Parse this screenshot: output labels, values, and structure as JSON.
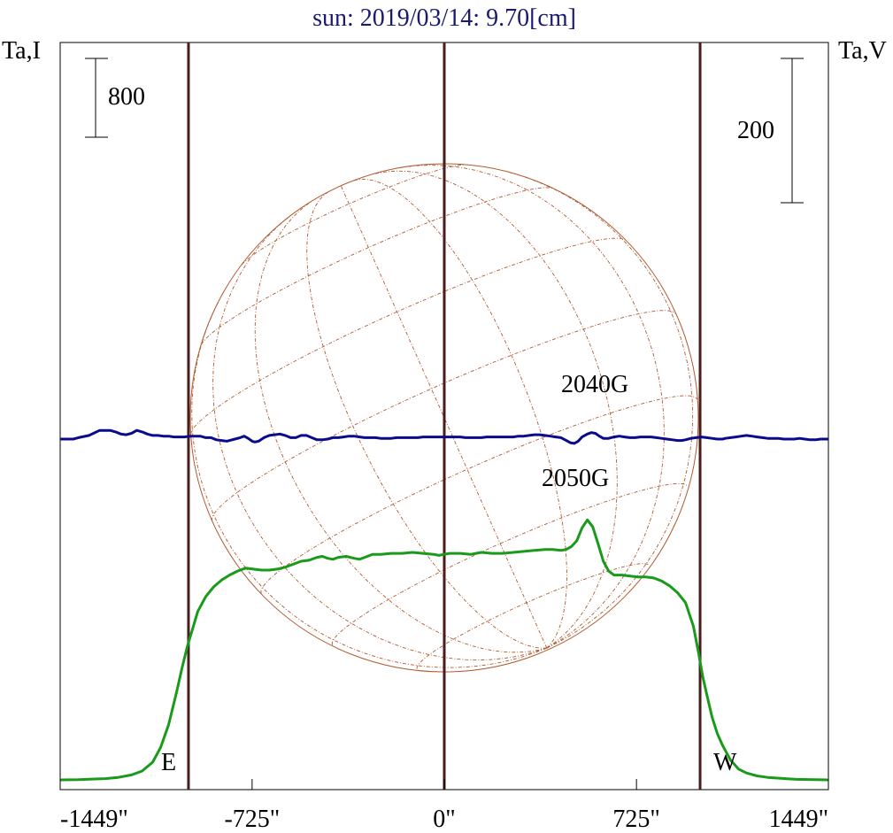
{
  "chart_data": {
    "type": "line",
    "title": "sun: 2019/03/14: 9.70[cm]",
    "left_axis_label": "Ta,I",
    "right_axis_label": "Ta,V",
    "xlim": [
      -1449,
      1449
    ],
    "x_ticks": [
      {
        "value": -1449,
        "label": "-1449\""
      },
      {
        "value": -725,
        "label": "-725\""
      },
      {
        "value": 0,
        "label": "0\""
      },
      {
        "value": 725,
        "label": "725\""
      },
      {
        "value": 1449,
        "label": "1449\""
      }
    ],
    "scale_bars": [
      {
        "side": "left",
        "value": 800,
        "label": "800"
      },
      {
        "side": "right",
        "value": 200,
        "label": "200"
      }
    ],
    "vertical_markers": [
      -965,
      0,
      965
    ],
    "limb_labels": {
      "east": "E",
      "west": "W"
    },
    "annotations": [
      "2040G",
      "2050G"
    ],
    "colors": {
      "title": "#1a1a6e",
      "intensity": "#1a9a1a",
      "polarization": "#0a0a8c",
      "markers": "#4a1c1c",
      "disk": "#b05a30",
      "frame": "#000000"
    },
    "series": [
      {
        "key": "intensity",
        "points": [
          [
            -1449,
            0
          ],
          [
            -1380,
            3
          ],
          [
            -1330,
            8
          ],
          [
            -1280,
            13
          ],
          [
            -1230,
            25
          ],
          [
            -1180,
            50
          ],
          [
            -1140,
            90
          ],
          [
            -1100,
            180
          ],
          [
            -1070,
            330
          ],
          [
            -1040,
            560
          ],
          [
            -1010,
            890
          ],
          [
            -990,
            1130
          ],
          [
            -970,
            1350
          ],
          [
            -950,
            1530
          ],
          [
            -930,
            1710
          ],
          [
            -900,
            1860
          ],
          [
            -870,
            1960
          ],
          [
            -840,
            2030
          ],
          [
            -810,
            2080
          ],
          [
            -780,
            2120
          ],
          [
            -750,
            2150
          ],
          [
            -720,
            2140
          ],
          [
            -690,
            2130
          ],
          [
            -660,
            2130
          ],
          [
            -630,
            2140
          ],
          [
            -600,
            2160
          ],
          [
            -570,
            2190
          ],
          [
            -540,
            2220
          ],
          [
            -510,
            2230
          ],
          [
            -480,
            2260
          ],
          [
            -460,
            2270
          ],
          [
            -440,
            2250
          ],
          [
            -420,
            2240
          ],
          [
            -400,
            2260
          ],
          [
            -370,
            2270
          ],
          [
            -340,
            2250
          ],
          [
            -320,
            2240
          ],
          [
            -300,
            2260
          ],
          [
            -270,
            2290
          ],
          [
            -240,
            2290
          ],
          [
            -200,
            2300
          ],
          [
            -160,
            2300
          ],
          [
            -120,
            2310
          ],
          [
            -80,
            2300
          ],
          [
            -40,
            2290
          ],
          [
            -20,
            2280
          ],
          [
            0,
            2290
          ],
          [
            20,
            2300
          ],
          [
            60,
            2300
          ],
          [
            100,
            2290
          ],
          [
            140,
            2310
          ],
          [
            180,
            2300
          ],
          [
            220,
            2300
          ],
          [
            260,
            2310
          ],
          [
            300,
            2320
          ],
          [
            340,
            2330
          ],
          [
            380,
            2340
          ],
          [
            410,
            2340
          ],
          [
            440,
            2330
          ],
          [
            460,
            2340
          ],
          [
            480,
            2370
          ],
          [
            500,
            2430
          ],
          [
            520,
            2560
          ],
          [
            540,
            2640
          ],
          [
            560,
            2570
          ],
          [
            580,
            2400
          ],
          [
            600,
            2220
          ],
          [
            620,
            2120
          ],
          [
            640,
            2080
          ],
          [
            670,
            2080
          ],
          [
            700,
            2070
          ],
          [
            730,
            2060
          ],
          [
            760,
            2060
          ],
          [
            790,
            2050
          ],
          [
            820,
            2020
          ],
          [
            850,
            1970
          ],
          [
            880,
            1900
          ],
          [
            910,
            1800
          ],
          [
            940,
            1560
          ],
          [
            960,
            1280
          ],
          [
            975,
            1050
          ],
          [
            990,
            870
          ],
          [
            1010,
            640
          ],
          [
            1030,
            470
          ],
          [
            1050,
            350
          ],
          [
            1080,
            200
          ],
          [
            1110,
            110
          ],
          [
            1140,
            70
          ],
          [
            1180,
            40
          ],
          [
            1220,
            25
          ],
          [
            1270,
            15
          ],
          [
            1330,
            5
          ],
          [
            1400,
            2
          ],
          [
            1449,
            0
          ]
        ]
      },
      {
        "key": "polarization",
        "points": [
          [
            -1449,
            0
          ],
          [
            -1400,
            0
          ],
          [
            -1380,
            2
          ],
          [
            -1340,
            5
          ],
          [
            -1300,
            12
          ],
          [
            -1260,
            12
          ],
          [
            -1240,
            10
          ],
          [
            -1220,
            7
          ],
          [
            -1200,
            6
          ],
          [
            -1180,
            8
          ],
          [
            -1160,
            12
          ],
          [
            -1140,
            10
          ],
          [
            -1120,
            7
          ],
          [
            -1100,
            5
          ],
          [
            -1080,
            5
          ],
          [
            -1060,
            4
          ],
          [
            -1040,
            4
          ],
          [
            -1020,
            3
          ],
          [
            -1000,
            3
          ],
          [
            -980,
            3
          ],
          [
            -960,
            4
          ],
          [
            -940,
            4
          ],
          [
            -920,
            4
          ],
          [
            -900,
            2
          ],
          [
            -880,
            2
          ],
          [
            -860,
            -1
          ],
          [
            -840,
            -2
          ],
          [
            -820,
            -3
          ],
          [
            -810,
            -2
          ],
          [
            -790,
            0
          ],
          [
            -770,
            2
          ],
          [
            -755,
            4
          ],
          [
            -740,
            1
          ],
          [
            -725,
            -3
          ],
          [
            -715,
            -4
          ],
          [
            -700,
            -3
          ],
          [
            -680,
            2
          ],
          [
            -660,
            5
          ],
          [
            -640,
            6
          ],
          [
            -620,
            7
          ],
          [
            -600,
            5
          ],
          [
            -580,
            2
          ],
          [
            -560,
            2
          ],
          [
            -540,
            5
          ],
          [
            -520,
            5
          ],
          [
            -500,
            2
          ],
          [
            -480,
            -1
          ],
          [
            -460,
            -1
          ],
          [
            -440,
            0
          ],
          [
            -420,
            2
          ],
          [
            -400,
            2
          ],
          [
            -380,
            3
          ],
          [
            -360,
            4
          ],
          [
            -340,
            4
          ],
          [
            -320,
            3
          ],
          [
            -300,
            2
          ],
          [
            -280,
            2
          ],
          [
            -260,
            2
          ],
          [
            -240,
            1
          ],
          [
            -220,
            1
          ],
          [
            -200,
            1
          ],
          [
            -180,
            2
          ],
          [
            -160,
            2
          ],
          [
            -140,
            2
          ],
          [
            -120,
            2
          ],
          [
            -100,
            2
          ],
          [
            -80,
            3
          ],
          [
            -60,
            3
          ],
          [
            -40,
            3
          ],
          [
            -20,
            3
          ],
          [
            0,
            3
          ],
          [
            20,
            3
          ],
          [
            40,
            3
          ],
          [
            60,
            3
          ],
          [
            80,
            2
          ],
          [
            100,
            2
          ],
          [
            120,
            2
          ],
          [
            140,
            2
          ],
          [
            160,
            3
          ],
          [
            180,
            3
          ],
          [
            200,
            3
          ],
          [
            220,
            3
          ],
          [
            240,
            3
          ],
          [
            260,
            3
          ],
          [
            280,
            4
          ],
          [
            300,
            4
          ],
          [
            320,
            5
          ],
          [
            340,
            6
          ],
          [
            360,
            6
          ],
          [
            380,
            5
          ],
          [
            400,
            4
          ],
          [
            420,
            3
          ],
          [
            440,
            2
          ],
          [
            460,
            -2
          ],
          [
            475,
            -5
          ],
          [
            490,
            -6
          ],
          [
            505,
            -3
          ],
          [
            520,
            3
          ],
          [
            540,
            7
          ],
          [
            555,
            9
          ],
          [
            570,
            8
          ],
          [
            585,
            4
          ],
          [
            600,
            1
          ],
          [
            620,
            1
          ],
          [
            640,
            3
          ],
          [
            660,
            4
          ],
          [
            680,
            3
          ],
          [
            700,
            2
          ],
          [
            720,
            2
          ],
          [
            740,
            3
          ],
          [
            760,
            3
          ],
          [
            780,
            3
          ],
          [
            800,
            2
          ],
          [
            820,
            1
          ],
          [
            840,
            0
          ],
          [
            860,
            -1
          ],
          [
            880,
            -2
          ],
          [
            895,
            -2
          ],
          [
            910,
            -1
          ],
          [
            930,
            1
          ],
          [
            950,
            2
          ],
          [
            970,
            3
          ],
          [
            990,
            2
          ],
          [
            1010,
            1
          ],
          [
            1030,
            0
          ],
          [
            1050,
            0
          ],
          [
            1060,
            1
          ],
          [
            1080,
            2
          ],
          [
            1100,
            3
          ],
          [
            1120,
            4
          ],
          [
            1140,
            5
          ],
          [
            1160,
            4
          ],
          [
            1180,
            3
          ],
          [
            1200,
            2
          ],
          [
            1220,
            1
          ],
          [
            1240,
            1
          ],
          [
            1260,
            1
          ],
          [
            1280,
            0
          ],
          [
            1300,
            0
          ],
          [
            1320,
            0
          ],
          [
            1340,
            1
          ],
          [
            1360,
            0
          ],
          [
            1380,
            -1
          ],
          [
            1400,
            -1
          ],
          [
            1420,
            0
          ],
          [
            1449,
            0
          ]
        ]
      }
    ]
  }
}
